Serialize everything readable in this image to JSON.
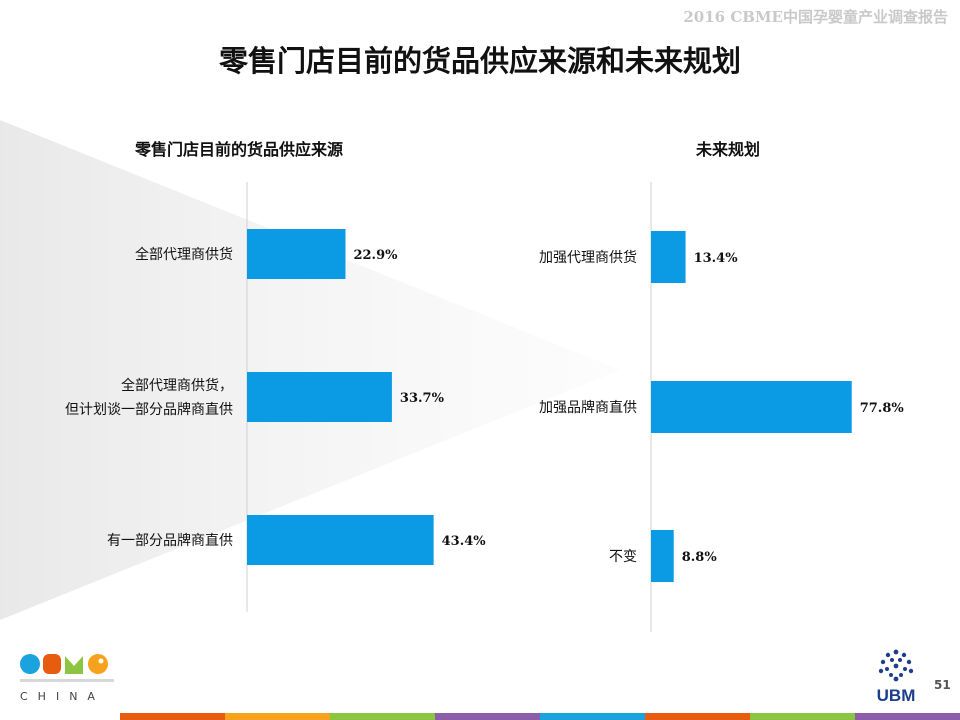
{
  "header": {
    "tag": "2016 CBME中国孕婴童产业调查报告"
  },
  "page_title": "零售门店目前的货品供应来源和未来规划",
  "page_number": "51",
  "logos": {
    "left": {
      "brand": "CBME",
      "sub": "CHINA"
    },
    "right": {
      "brand": "UBM"
    }
  },
  "colors": {
    "bar": "#0b9ae4",
    "axis": "#d0d0d0",
    "bottom_stripes": [
      "#e85c10",
      "#f6a21c",
      "#8cc540",
      "#8b5ea7",
      "#1aa3dc",
      "#e85c10",
      "#8cc540",
      "#8b5ea7"
    ]
  },
  "chart_data": [
    {
      "type": "bar",
      "orientation": "horizontal",
      "title": "零售门店目前的货品供应来源",
      "categories": [
        "全部代理商供货",
        "全部代理商供货，\n但计划谈一部分品牌商直供",
        "有一部分品牌商直供"
      ],
      "values": [
        22.9,
        33.7,
        43.4
      ],
      "value_labels": [
        "22.9%",
        "33.7%",
        "43.4%"
      ],
      "unit": "%",
      "xlim": [
        0,
        100
      ],
      "grid": false,
      "legend": "none"
    },
    {
      "type": "bar",
      "orientation": "horizontal",
      "title": "未来规划",
      "categories": [
        "加强代理商供货",
        "加强品牌商直供",
        "不变"
      ],
      "values": [
        13.4,
        77.8,
        8.8
      ],
      "value_labels": [
        "13.4%",
        "77.8%",
        "8.8%"
      ],
      "unit": "%",
      "xlim": [
        0,
        100
      ],
      "grid": false,
      "legend": "none"
    }
  ]
}
